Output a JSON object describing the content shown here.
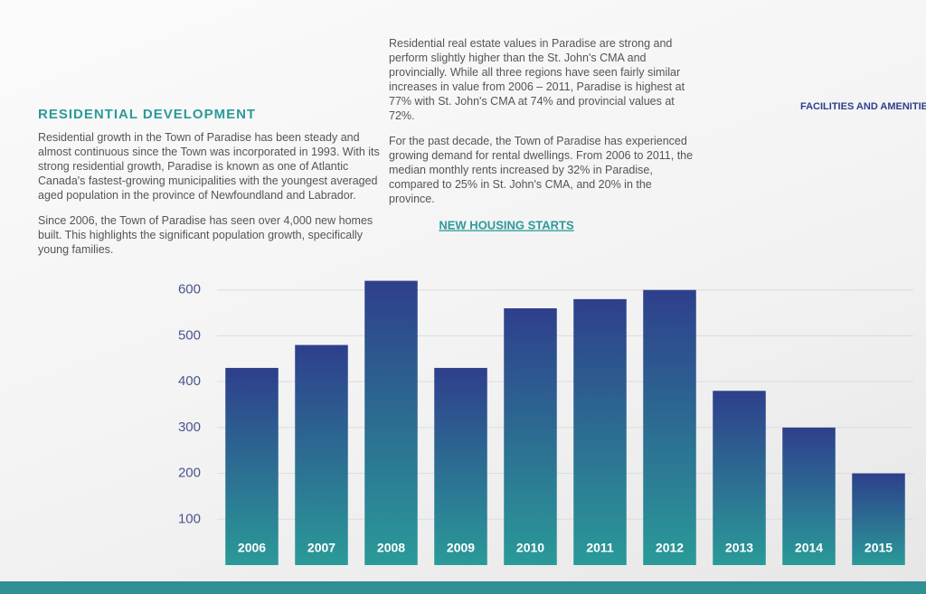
{
  "heading": "RESIDENTIAL DEVELOPMENT",
  "left_paragraphs": [
    "Residential growth in the Town of Paradise has been steady and almost continuous since the Town was incorporated in 1993. With its strong residential growth, Paradise is known as one of Atlantic Canada's fastest-growing municipalities with the youngest averaged aged population in the province of Newfoundland and Labrador.",
    "Since 2006, the Town of Paradise has seen over 4,000 new homes built. This highlights the significant population growth, specifically young families."
  ],
  "middle_paragraphs": [
    "Residential real estate values in Paradise are strong and perform slightly higher than the St. John's CMA and provincially. While all three regions have seen fairly similar increases in value from 2006 – 2011, Paradise is highest at 77% with St. John's CMA at 74% and provincial values at 72%.",
    "For the past decade, the Town of Paradise has experienced growing demand for rental dwellings. From 2006 to 2011, the median monthly rents increased by 32% in Paradise, compared to 25% in St. John's CMA, and 20% in the province."
  ],
  "right_heading": "FACILITIES AND AMENITIES",
  "chart_data": {
    "type": "bar",
    "title": "NEW HOUSING STARTS",
    "categories": [
      "2006",
      "2007",
      "2008",
      "2009",
      "2010",
      "2011",
      "2012",
      "2013",
      "2014",
      "2015"
    ],
    "values": [
      430,
      480,
      620,
      430,
      560,
      580,
      600,
      380,
      300,
      200
    ],
    "ylim": [
      0,
      700
    ],
    "yticks": [
      100,
      200,
      300,
      400,
      500,
      600
    ],
    "grid": true,
    "color_top": "#2e3f8c",
    "color_bottom": "#2a9a98"
  }
}
